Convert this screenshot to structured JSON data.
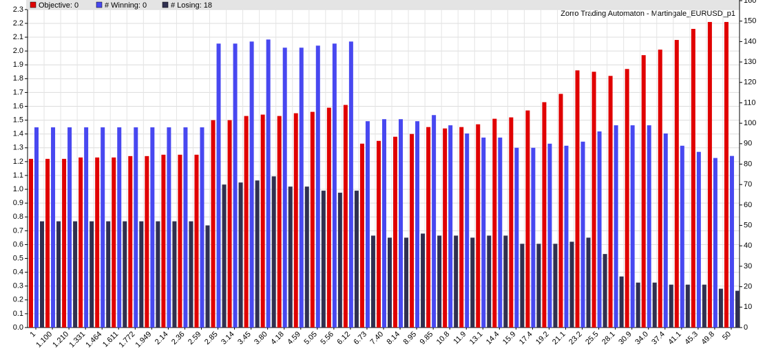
{
  "chart_data": {
    "type": "bar",
    "title": "Zorro Trading Automaton - Martingale_EURUSD_p1",
    "legend_labels": [
      "Objective: 0",
      "# Winning: 0",
      "# Losing: 18"
    ],
    "categories": [
      "1",
      "1.100",
      "1.210",
      "1.331",
      "1.464",
      "1.611",
      "1.772",
      "1.949",
      "2.14",
      "2.36",
      "2.59",
      "2.85",
      "3.14",
      "3.45",
      "3.80",
      "4.18",
      "4.59",
      "5.05",
      "5.56",
      "6.12",
      "6.73",
      "7.40",
      "8.14",
      "8.95",
      "9.85",
      "10.8",
      "11.9",
      "13.1",
      "14.4",
      "15.9",
      "17.4",
      "19.2",
      "21.1",
      "23.2",
      "25.5",
      "28.1",
      "30.9",
      "34.0",
      "37.4",
      "41.1",
      "45.3",
      "49.8",
      "50"
    ],
    "series": [
      {
        "name": "Objective",
        "color": "#e00000",
        "values": [
          1.22,
          1.22,
          1.22,
          1.23,
          1.23,
          1.23,
          1.24,
          1.24,
          1.25,
          1.25,
          1.25,
          1.5,
          1.5,
          1.53,
          1.54,
          1.53,
          1.55,
          1.56,
          1.59,
          1.61,
          1.33,
          1.35,
          1.38,
          1.4,
          1.45,
          1.44,
          1.45,
          1.47,
          1.51,
          1.52,
          1.57,
          1.63,
          1.69,
          1.86,
          1.85,
          1.82,
          1.87,
          1.97,
          2.01,
          2.08,
          2.16,
          2.21,
          2.21
        ]
      },
      {
        "name": "# Winning",
        "color": "#4848f0",
        "axis": "y2",
        "values": [
          98,
          98,
          98,
          98,
          98,
          98,
          98,
          98,
          98,
          98,
          98,
          139,
          139,
          140,
          141,
          137,
          137,
          138,
          139,
          140,
          101,
          102,
          102,
          101,
          104,
          99,
          95,
          93,
          93,
          88,
          88,
          90,
          89,
          91,
          96,
          99,
          99,
          99,
          95,
          89,
          86,
          83,
          84
        ]
      },
      {
        "name": "# Losing",
        "color": "#303050",
        "axis": "y2",
        "values": [
          52,
          52,
          52,
          52,
          52,
          52,
          52,
          52,
          52,
          52,
          50,
          70,
          71,
          72,
          74,
          69,
          69,
          67,
          66,
          67,
          45,
          44,
          44,
          46,
          45,
          45,
          44,
          45,
          45,
          41,
          41,
          41,
          42,
          44,
          36,
          25,
          22,
          22,
          21,
          21,
          21,
          19,
          18
        ]
      }
    ],
    "ylim": [
      0,
      2.364
    ],
    "yticks": [
      {
        "value": 0,
        "label": "0.0"
      },
      0.1,
      0.2,
      0.3,
      0.4,
      0.5,
      0.6,
      0.7,
      0.8,
      0.9,
      {
        "value": 1,
        "label": "1.0"
      },
      1.1,
      1.2,
      1.3,
      1.4,
      1.5,
      1.6,
      1.7,
      1.8,
      1.9,
      {
        "value": 2,
        "label": "2.0"
      },
      2.1,
      2.2,
      2.3
    ],
    "y2lim": [
      0,
      160
    ],
    "y2ticks": [
      0,
      10,
      20,
      30,
      40,
      50,
      60,
      70,
      80,
      90,
      100,
      110,
      120,
      130,
      140,
      150,
      160
    ],
    "grid": true
  }
}
